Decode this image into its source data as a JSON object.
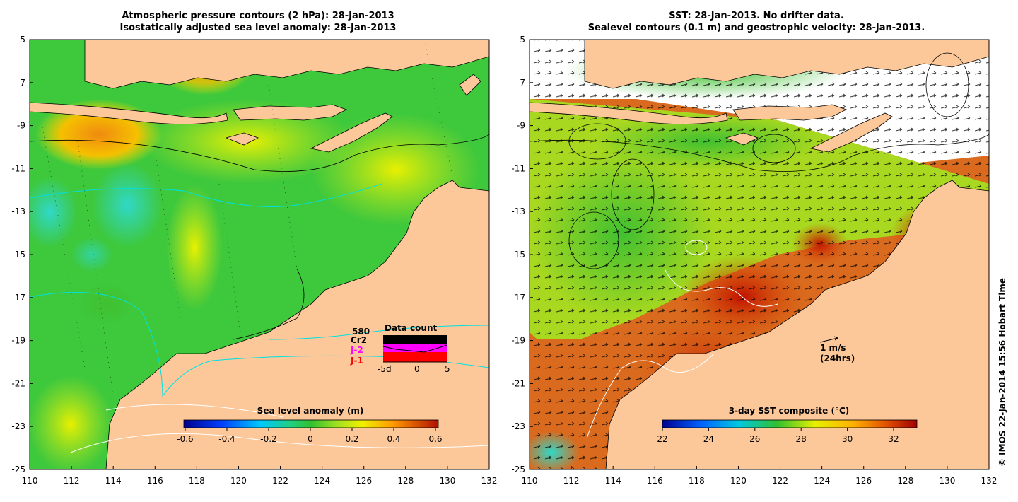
{
  "left_panel": {
    "title_line1": "Atmospheric pressure contours (2 hPa): 28-Jan-2013",
    "title_line2": "Isostatically adjusted sea level anomaly: 28-Jan-2013",
    "colorbar_label": "Sea level anomaly (m)",
    "colorbar_ticks": [
      "-0.6",
      "-0.4",
      "-0.2",
      "0",
      "0.2",
      "0.4",
      "0.6"
    ],
    "data_count": {
      "title": "Data count",
      "max_label": "580",
      "series": [
        {
          "name": "Cr2",
          "color": "#000000"
        },
        {
          "name": "J-2",
          "color": "#ff00ff"
        },
        {
          "name": "J-1",
          "color": "#ff0000"
        }
      ],
      "x_ticks": [
        "-5d",
        "0",
        "5"
      ]
    }
  },
  "right_panel": {
    "title_line1": "SST: 28-Jan-2013. No drifter data.",
    "title_line2": "Sealevel contours (0.1 m) and geostrophic velocity: 28-Jan-2013.",
    "colorbar_label": "3-day SST composite (°C)",
    "colorbar_ticks": [
      "22",
      "24",
      "26",
      "28",
      "30",
      "32"
    ],
    "velocity_key_line1": "1 m/s",
    "velocity_key_line2": "(24hrs)"
  },
  "axes": {
    "lon_ticks": [
      "110",
      "112",
      "114",
      "116",
      "118",
      "120",
      "122",
      "124",
      "126",
      "128",
      "130",
      "132"
    ],
    "lat_ticks": [
      "-5",
      "-7",
      "-9",
      "-11",
      "-13",
      "-15",
      "-17",
      "-19",
      "-21",
      "-23",
      "-25"
    ]
  },
  "copyright": "© IMOS 22-Jan-2014 15:56 Hobart Time",
  "colors": {
    "land": "#fcc89a",
    "ocean_sla": "#3ec83c",
    "ocean_sst": "#d96a1e"
  }
}
